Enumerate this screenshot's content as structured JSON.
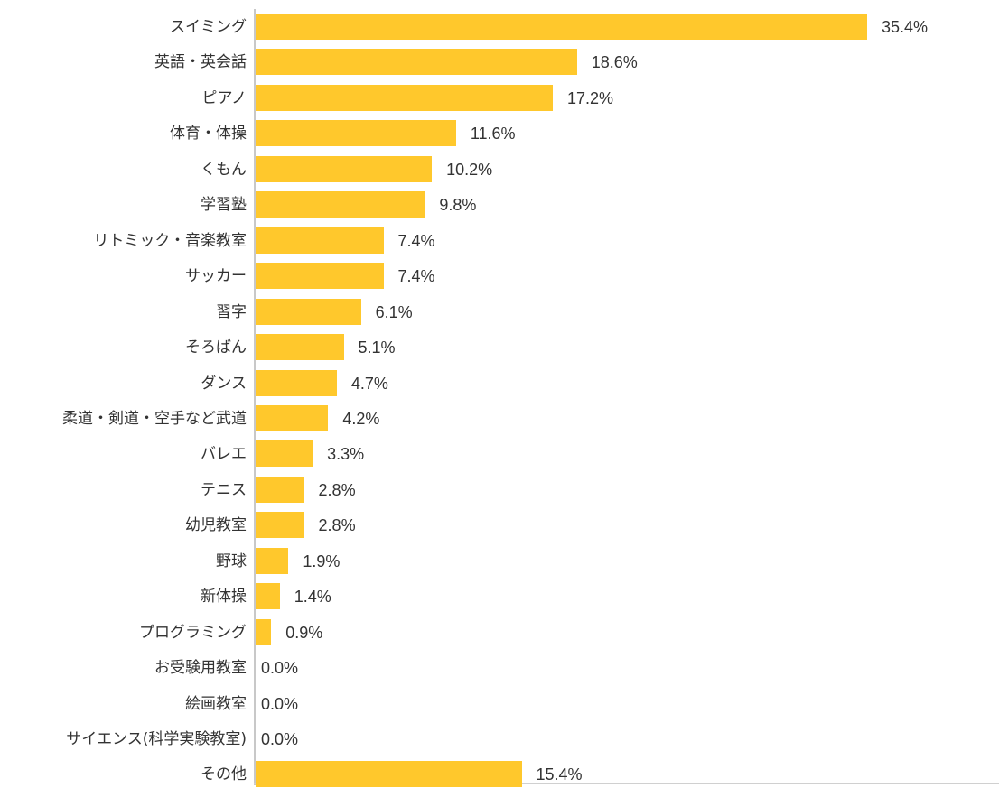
{
  "chart_data": {
    "type": "bar",
    "orientation": "horizontal",
    "title": "",
    "xlabel": "",
    "ylabel": "",
    "xlim": [
      0,
      40
    ],
    "grid": false,
    "legend": null,
    "bar_color": "#ffc82c",
    "categories": [
      "スイミング",
      "英語・英会話",
      "ピアノ",
      "体育・体操",
      "くもん",
      "学習塾",
      "リトミック・音楽教室",
      "サッカー",
      "習字",
      "そろばん",
      "ダンス",
      "柔道・剣道・空手など武道",
      "バレエ",
      "テニス",
      "幼児教室",
      "野球",
      "新体操",
      "プログラミング",
      "お受験用教室",
      "絵画教室",
      "サイエンス(科学実験教室)",
      "その他"
    ],
    "values": [
      35.4,
      18.6,
      17.2,
      11.6,
      10.2,
      9.8,
      7.4,
      7.4,
      6.1,
      5.1,
      4.7,
      4.2,
      3.3,
      2.8,
      2.8,
      1.9,
      1.4,
      0.9,
      0.0,
      0.0,
      0.0,
      15.4
    ],
    "value_labels": [
      "35.4%",
      "18.6%",
      "17.2%",
      "11.6%",
      "10.2%",
      "9.8%",
      "7.4%",
      "7.4%",
      "6.1%",
      "5.1%",
      "4.7%",
      "4.2%",
      "3.3%",
      "2.8%",
      "2.8%",
      "1.9%",
      "1.4%",
      "0.9%",
      "0.0%",
      "0.0%",
      "0.0%",
      "15.4%"
    ]
  }
}
